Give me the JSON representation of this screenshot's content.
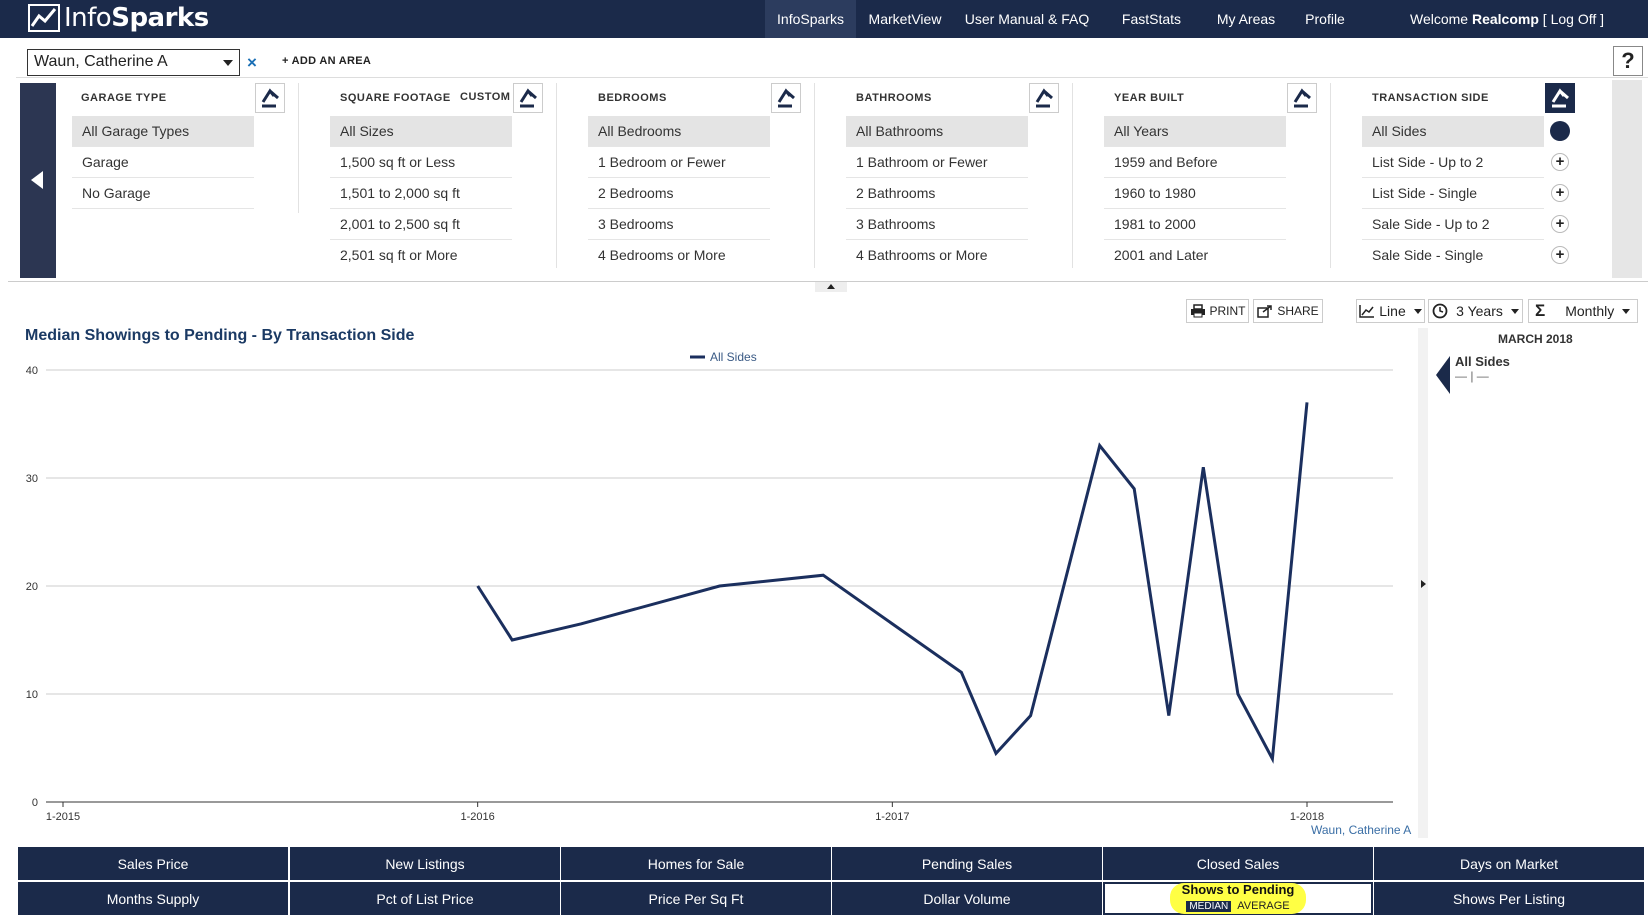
{
  "app": {
    "logo_info": "Info",
    "logo_sparks": "Sparks"
  },
  "nav": {
    "items": [
      "InfoSparks",
      "MarketView",
      "User Manual & FAQ",
      "FastStats",
      "My Areas",
      "Profile"
    ],
    "welcome_prefix": "Welcome ",
    "user": "Realcomp",
    "logoff": " [ Log Off ]"
  },
  "area": {
    "selected": "Waun, Catherine A",
    "remove": "×",
    "add_label": "+ ADD AN AREA",
    "help": "?"
  },
  "filters": {
    "garage": {
      "header": "GARAGE TYPE",
      "options": [
        "All Garage Types",
        "Garage",
        "No Garage"
      ]
    },
    "sqft": {
      "header": "SQUARE FOOTAGE",
      "custom": "CUSTOM",
      "options": [
        "All Sizes",
        "1,500 sq ft or Less",
        "1,501 to 2,000 sq ft",
        "2,001 to 2,500 sq ft",
        "2,501 sq ft or More"
      ]
    },
    "bedrooms": {
      "header": "BEDROOMS",
      "options": [
        "All Bedrooms",
        "1 Bedroom or Fewer",
        "2 Bedrooms",
        "3 Bedrooms",
        "4 Bedrooms or More"
      ]
    },
    "bathrooms": {
      "header": "BATHROOMS",
      "options": [
        "All Bathrooms",
        "1 Bathroom or Fewer",
        "2 Bathrooms",
        "3 Bathrooms",
        "4 Bathrooms or More"
      ]
    },
    "year": {
      "header": "YEAR BUILT",
      "options": [
        "All Years",
        "1959 and Before",
        "1960 to 1980",
        "1981 to 2000",
        "2001 and Later"
      ]
    },
    "transaction": {
      "header": "TRANSACTION SIDE",
      "options": [
        "All Sides",
        "List Side - Up to 2",
        "List Side - Single",
        "Sale Side - Up to 2",
        "Sale Side - Single"
      ]
    }
  },
  "toolbar": {
    "print": "PRINT",
    "share": "SHARE",
    "chart_type": "Line",
    "period": "3 Years",
    "interval": "Monthly"
  },
  "side_panel": {
    "month": "MARCH 2018",
    "series": "All Sides",
    "value": "— | —"
  },
  "chart_data": {
    "type": "line",
    "title": "Median Showings to Pending - By Transaction Side",
    "ylim": [
      0,
      40
    ],
    "yticks": [
      0,
      10,
      20,
      30,
      40
    ],
    "xticks": [
      "1-2015",
      "1-2016",
      "1-2017",
      "1-2018"
    ],
    "series": [
      {
        "name": "All Sides",
        "color": "#1b2f5e",
        "x": [
          "2016-01",
          "2016-02",
          "2016-04",
          "2016-08",
          "2016-11",
          "2017-03",
          "2017-04",
          "2017-05",
          "2017-07",
          "2017-08",
          "2017-09",
          "2017-10",
          "2017-11",
          "2017-12",
          "2018-01"
        ],
        "values": [
          20,
          15,
          16.5,
          20,
          21,
          12,
          4.5,
          8,
          33,
          29,
          8,
          31,
          10,
          4,
          37
        ]
      }
    ],
    "credit": "Waun, Catherine A"
  },
  "metric_tabs": {
    "row1": [
      "Sales Price",
      "New Listings",
      "Homes for Sale",
      "Pending Sales",
      "Closed Sales",
      "Days on Market"
    ],
    "row2": [
      "Months Supply",
      "Pct of List Price",
      "Price Per Sq Ft",
      "Dollar Volume",
      "Shows to Pending",
      "Shows Per Listing"
    ],
    "active_sub": {
      "median": "MEDIAN",
      "average": "AVERAGE"
    }
  },
  "colors": {
    "navy": "#1b2a4a",
    "line": "#1b2f5e",
    "highlight": "#ffff44"
  }
}
